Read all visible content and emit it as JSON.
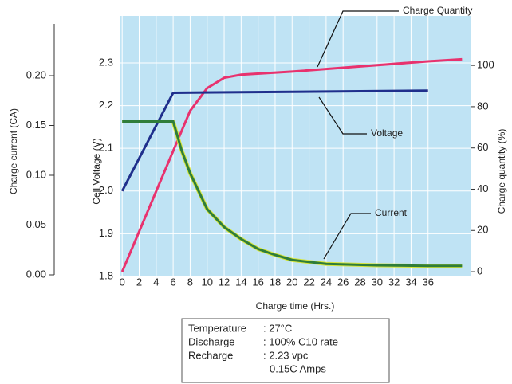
{
  "chart_data": {
    "type": "line",
    "xlabel": "Charge time (Hrs.)",
    "ylabel": "Cell Voltage (V)",
    "y2label": "Charge quantity (%)",
    "y3label": "Charge current (CA)",
    "xlim": [
      -0.3,
      41
    ],
    "xticks": [
      0,
      2,
      4,
      6,
      8,
      10,
      12,
      14,
      16,
      18,
      20,
      22,
      24,
      26,
      28,
      30,
      32,
      34,
      36
    ],
    "ylim": [
      1.8,
      2.41
    ],
    "yticks": [
      1.8,
      1.9,
      {
        "value": 2,
        "label": "2.0"
      },
      2.1,
      2.2,
      2.3
    ],
    "y2lim": [
      -2.3,
      124
    ],
    "y2ticks": [
      0,
      20,
      40,
      60,
      80,
      100
    ],
    "y3lim": [
      0,
      0.252
    ],
    "y3ticks": [
      {
        "value": 0,
        "label": "0.00"
      },
      0.05,
      {
        "value": 0.1,
        "label": "0.10"
      },
      0.15,
      {
        "value": 0.2,
        "label": "0.20"
      }
    ],
    "grid": true,
    "background": "#bfe3f4",
    "series": [
      {
        "name": "Charge Quantity",
        "color": "#e8326e",
        "axis": "y2",
        "x": [
          0,
          8,
          10,
          12,
          14,
          20,
          28,
          36,
          40
        ],
        "values": [
          0,
          78,
          89,
          94,
          95.5,
          97,
          99.5,
          102,
          103
        ]
      },
      {
        "name": "Voltage",
        "color": "#1f2f8c",
        "axis": "y",
        "x": [
          0,
          6,
          36
        ],
        "values": [
          2.0,
          2.23,
          2.235
        ]
      },
      {
        "name": "Current",
        "color": "#2f7d3a",
        "axis": "y3",
        "x": [
          0,
          6,
          7,
          8,
          10,
          12,
          14,
          16,
          18,
          20,
          22,
          24,
          30,
          36,
          40
        ],
        "values": [
          0.154,
          0.154,
          0.125,
          0.102,
          0.066,
          0.048,
          0.036,
          0.026,
          0.02,
          0.015,
          0.013,
          0.011,
          0.0096,
          0.009,
          0.009
        ]
      }
    ],
    "notes": [
      {
        "label": "Temperature",
        "value": ": 27°C"
      },
      {
        "label": "Discharge",
        "value": ": 100% C10 rate"
      },
      {
        "label": "Recharge",
        "value": ": 2.23 vpc"
      },
      {
        "value": "0.15C Amps"
      }
    ]
  }
}
